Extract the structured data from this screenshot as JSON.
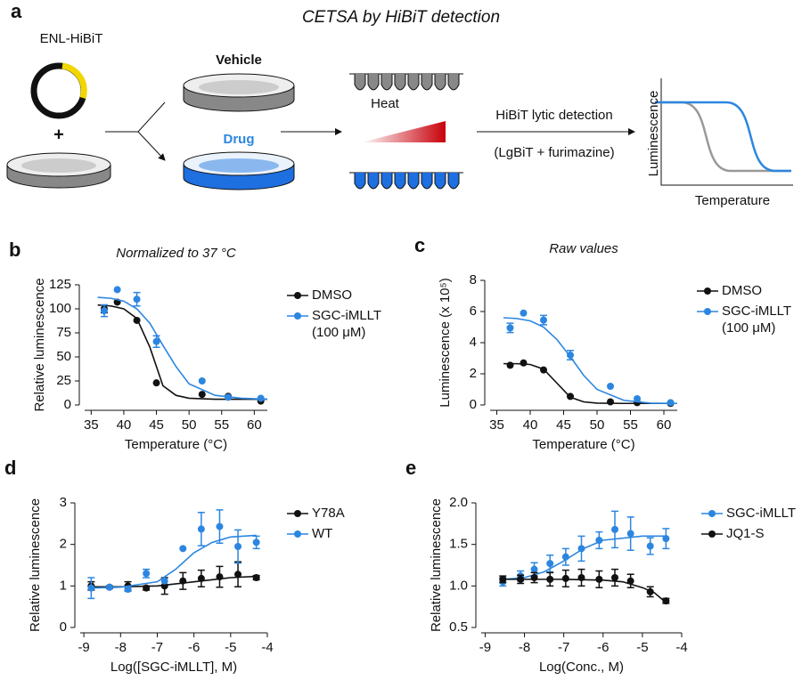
{
  "schematic": {
    "panel": "a",
    "title": "CETSA by HiBiT detection",
    "plasmid": "ENL-HiBiT",
    "plus": "+",
    "vehicle": "Vehicle",
    "drug": "Drug",
    "heat": "Heat",
    "detection": "HiBiT lytic detection",
    "reagents": "(LgBiT + furimazine)",
    "ylabel": "Luminescence",
    "xlabel": "Temperature"
  },
  "chart_data": [
    {
      "type": "scatter",
      "panel": "b",
      "title": "Normalized to 37 °C",
      "xlabel": "Temperature (°C)",
      "ylabel": "Relative luminescence",
      "xlim": [
        34,
        62
      ],
      "xticks": [
        35,
        40,
        45,
        50,
        55,
        60
      ],
      "ylim": [
        0,
        125
      ],
      "yticks": [
        0,
        25,
        50,
        75,
        100,
        125
      ],
      "series": [
        {
          "name": "DMSO",
          "color": "#111111",
          "x": [
            37,
            39,
            42,
            45,
            52,
            56,
            61
          ],
          "values": [
            100,
            107,
            88,
            23,
            11,
            9,
            4
          ],
          "errors": [
            4,
            null,
            null,
            null,
            null,
            null,
            null
          ],
          "fit_x": [
            36,
            38,
            40,
            42,
            44,
            46,
            48,
            50,
            54,
            58,
            62
          ],
          "fit_values": [
            104,
            103,
            100,
            90,
            60,
            20,
            10,
            7,
            6,
            6,
            6
          ]
        },
        {
          "name": "SGC-iMLLT\n(100 μM)",
          "color": "#2c86e0",
          "x": [
            37,
            39,
            42,
            45,
            52,
            56,
            61
          ],
          "values": [
            98,
            120,
            110,
            66,
            25,
            8,
            7
          ],
          "errors": [
            6,
            null,
            7,
            6,
            null,
            null,
            null
          ],
          "fit_x": [
            36,
            38,
            40,
            42,
            44,
            46,
            48,
            50,
            54,
            58,
            62
          ],
          "fit_values": [
            112,
            111,
            108,
            100,
            85,
            62,
            40,
            22,
            10,
            7,
            6
          ]
        }
      ]
    },
    {
      "type": "scatter",
      "panel": "c",
      "title": "Raw values",
      "xlabel": "Temperature (°C)",
      "ylabel": "Luminescence (x 10⁵)",
      "xlim": [
        34,
        62
      ],
      "xticks": [
        35,
        40,
        45,
        50,
        55,
        60
      ],
      "ylim": [
        0,
        8
      ],
      "yticks": [
        0,
        2,
        4,
        6,
        8
      ],
      "series": [
        {
          "name": "DMSO",
          "color": "#111111",
          "x": [
            37,
            39,
            42,
            46,
            52,
            56,
            61
          ],
          "values": [
            2.55,
            2.7,
            2.25,
            0.55,
            0.2,
            0.15,
            0.1
          ],
          "errors": [
            null,
            null,
            null,
            null,
            null,
            null,
            null
          ],
          "fit_x": [
            36,
            38,
            40,
            42,
            44,
            46,
            48,
            50,
            54,
            58,
            62
          ],
          "fit_values": [
            2.65,
            2.65,
            2.6,
            2.3,
            1.4,
            0.5,
            0.2,
            0.12,
            0.1,
            0.1,
            0.1
          ]
        },
        {
          "name": "SGC-iMLLT\n(100 μM)",
          "color": "#2c86e0",
          "x": [
            37,
            39,
            42,
            46,
            52,
            56,
            61
          ],
          "values": [
            4.95,
            5.9,
            5.45,
            3.2,
            1.2,
            0.4,
            0.15
          ],
          "errors": [
            0.3,
            null,
            0.3,
            0.3,
            null,
            null,
            null
          ],
          "fit_x": [
            36,
            38,
            40,
            42,
            44,
            46,
            48,
            50,
            54,
            58,
            62
          ],
          "fit_values": [
            5.6,
            5.55,
            5.4,
            5.0,
            4.2,
            3.1,
            1.9,
            1.0,
            0.3,
            0.12,
            0.1
          ]
        }
      ]
    },
    {
      "type": "scatter",
      "panel": "d",
      "xlabel": "Log([SGC-iMLLT], M)",
      "ylabel": "Relative luminescence",
      "xlim": [
        -9.1,
        -4
      ],
      "xticks": [
        -9,
        -8,
        -7,
        -6,
        -5,
        -4
      ],
      "ylim": [
        0,
        3
      ],
      "yticks": [
        0,
        1,
        2,
        3
      ],
      "series": [
        {
          "name": "Y78A",
          "color": "#111111",
          "x": [
            -8.8,
            -8.3,
            -7.8,
            -7.3,
            -6.8,
            -6.3,
            -5.8,
            -5.3,
            -4.8,
            -4.3
          ],
          "values": [
            1.0,
            0.97,
            1.0,
            0.95,
            1.0,
            1.12,
            1.18,
            1.22,
            1.28,
            1.2
          ],
          "errors": [
            0.1,
            0.03,
            0.1,
            0.05,
            0.2,
            0.2,
            0.2,
            0.25,
            0.3,
            0.05
          ],
          "fit_x": [
            -8.8,
            -8,
            -7,
            -6,
            -5,
            -4.3
          ],
          "fit_values": [
            0.98,
            0.98,
            1.0,
            1.1,
            1.2,
            1.23
          ]
        },
        {
          "name": "WT",
          "color": "#2c86e0",
          "x": [
            -8.8,
            -8.3,
            -7.8,
            -7.3,
            -6.8,
            -6.3,
            -5.8,
            -5.3,
            -4.8,
            -4.3
          ],
          "values": [
            0.95,
            0.97,
            0.92,
            1.3,
            1.12,
            1.9,
            2.37,
            2.43,
            1.95,
            2.05
          ],
          "errors": [
            0.25,
            null,
            0.05,
            0.1,
            null,
            null,
            0.4,
            0.4,
            0.4,
            0.15
          ],
          "fit_x": [
            -8.8,
            -8,
            -7,
            -6.5,
            -6,
            -5.5,
            -5,
            -4.3
          ],
          "fit_values": [
            0.95,
            0.97,
            1.1,
            1.4,
            1.8,
            2.05,
            2.18,
            2.22
          ]
        }
      ]
    },
    {
      "type": "scatter",
      "panel": "e",
      "xlabel": "Log(Conc., M)",
      "ylabel": "Relative luminescence",
      "xlim": [
        -9.1,
        -4
      ],
      "xticks": [
        -9,
        -8,
        -7,
        -6,
        -5,
        -4
      ],
      "ylim": [
        0.5,
        2
      ],
      "yticks": [
        0.5,
        {
          "value": 1,
          "label": "1.0"
        },
        1.5,
        {
          "value": 2,
          "label": "2.0"
        }
      ],
      "series": [
        {
          "name": "SGC-iMLLT",
          "color": "#2c86e0",
          "x": [
            -8.55,
            -8.1,
            -7.75,
            -7.35,
            -6.95,
            -6.55,
            -6.1,
            -5.7,
            -5.3,
            -4.8,
            -4.4
          ],
          "values": [
            1.05,
            1.12,
            1.2,
            1.27,
            1.35,
            1.45,
            1.55,
            1.68,
            1.63,
            1.48,
            1.57
          ],
          "errors": [
            0.05,
            0.06,
            0.08,
            0.1,
            0.1,
            0.15,
            0.1,
            0.22,
            0.2,
            0.1,
            0.12
          ],
          "fit_x": [
            -8.55,
            -8,
            -7.5,
            -7,
            -6.5,
            -6,
            -5,
            -4.4
          ],
          "fit_values": [
            1.08,
            1.1,
            1.17,
            1.3,
            1.45,
            1.55,
            1.6,
            1.6
          ]
        },
        {
          "name": "JQ1-S",
          "color": "#111111",
          "x": [
            -8.55,
            -8.1,
            -7.75,
            -7.35,
            -6.95,
            -6.55,
            -6.1,
            -5.7,
            -5.3,
            -4.8,
            -4.4
          ],
          "values": [
            1.08,
            1.08,
            1.1,
            1.08,
            1.09,
            1.1,
            1.08,
            1.1,
            1.06,
            0.93,
            0.82
          ],
          "errors": [
            0.04,
            0.05,
            0.06,
            0.08,
            0.1,
            0.1,
            0.1,
            0.1,
            0.08,
            0.06,
            0.03
          ],
          "fit_x": [
            -8.55,
            -7,
            -6,
            -5.5,
            -5,
            -4.7,
            -4.4
          ],
          "fit_values": [
            1.08,
            1.08,
            1.07,
            1.05,
            0.98,
            0.92,
            0.8
          ]
        }
      ]
    }
  ]
}
